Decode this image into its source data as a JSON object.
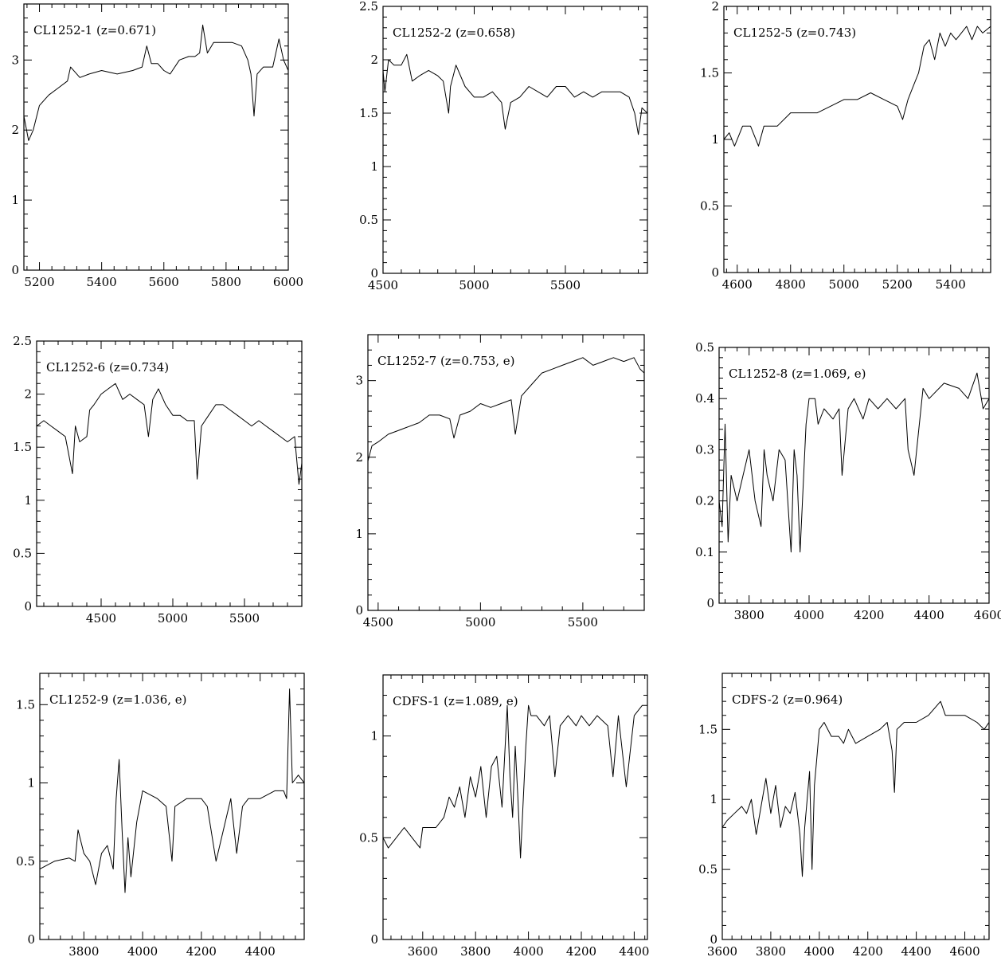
{
  "chart_data": [
    {
      "type": "line",
      "title": "CL1252-1  (z=0.671)",
      "xlim": [
        5150,
        6000
      ],
      "ylim": [
        0,
        3.8
      ],
      "xticks": [
        5200,
        5400,
        5600,
        5800,
        6000
      ],
      "yticks": [
        0,
        1,
        2,
        3
      ],
      "series": [
        {
          "x": [
            5150,
            5165,
            5180,
            5200,
            5230,
            5260,
            5290,
            5300,
            5330,
            5360,
            5400,
            5450,
            5500,
            5530,
            5545,
            5560,
            5580,
            5600,
            5620,
            5650,
            5680,
            5700,
            5715,
            5725,
            5740,
            5760,
            5790,
            5820,
            5850,
            5870,
            5880,
            5890,
            5900,
            5920,
            5950,
            5970,
            5985,
            6000
          ],
          "y": [
            2.2,
            1.85,
            2.0,
            2.35,
            2.5,
            2.6,
            2.7,
            2.9,
            2.75,
            2.8,
            2.85,
            2.8,
            2.85,
            2.9,
            3.2,
            2.95,
            2.95,
            2.85,
            2.8,
            3.0,
            3.05,
            3.05,
            3.1,
            3.5,
            3.1,
            3.25,
            3.25,
            3.25,
            3.2,
            3.0,
            2.8,
            2.2,
            2.8,
            2.9,
            2.9,
            3.3,
            3.0,
            2.85
          ]
        }
      ]
    },
    {
      "type": "line",
      "title": "CL1252-2  (z=0.658)",
      "xlim": [
        4500,
        5950
      ],
      "ylim": [
        0,
        2.5
      ],
      "xticks": [
        4500,
        5000,
        5500
      ],
      "yticks": [
        0,
        0.5,
        1,
        1.5,
        2,
        2.5
      ],
      "series": [
        {
          "x": [
            4500,
            4510,
            4530,
            4560,
            4600,
            4630,
            4660,
            4700,
            4750,
            4800,
            4830,
            4860,
            4870,
            4900,
            4950,
            5000,
            5050,
            5100,
            5150,
            5170,
            5200,
            5250,
            5300,
            5350,
            5400,
            5450,
            5500,
            5550,
            5600,
            5650,
            5700,
            5750,
            5800,
            5850,
            5880,
            5900,
            5920,
            5950
          ],
          "y": [
            1.9,
            1.7,
            2.0,
            1.95,
            1.95,
            2.05,
            1.8,
            1.85,
            1.9,
            1.85,
            1.8,
            1.5,
            1.75,
            1.95,
            1.75,
            1.65,
            1.65,
            1.7,
            1.6,
            1.35,
            1.6,
            1.65,
            1.75,
            1.7,
            1.65,
            1.75,
            1.75,
            1.65,
            1.7,
            1.65,
            1.7,
            1.7,
            1.7,
            1.65,
            1.5,
            1.3,
            1.55,
            1.5
          ]
        }
      ]
    },
    {
      "type": "line",
      "title": "CL1252-5  (z=0.743)",
      "xlim": [
        4550,
        5550
      ],
      "ylim": [
        0,
        2
      ],
      "xticks": [
        4600,
        4800,
        5000,
        5200,
        5400
      ],
      "yticks": [
        0,
        0.5,
        1,
        1.5,
        2
      ],
      "series": [
        {
          "x": [
            4550,
            4570,
            4590,
            4620,
            4650,
            4680,
            4700,
            4750,
            4800,
            4850,
            4900,
            4950,
            5000,
            5050,
            5100,
            5150,
            5200,
            5220,
            5240,
            5260,
            5280,
            5300,
            5320,
            5340,
            5360,
            5380,
            5400,
            5420,
            5440,
            5460,
            5480,
            5500,
            5520,
            5550
          ],
          "y": [
            1.0,
            1.05,
            0.95,
            1.1,
            1.1,
            0.95,
            1.1,
            1.1,
            1.2,
            1.2,
            1.2,
            1.25,
            1.3,
            1.3,
            1.35,
            1.3,
            1.25,
            1.15,
            1.3,
            1.4,
            1.5,
            1.7,
            1.75,
            1.6,
            1.8,
            1.7,
            1.8,
            1.75,
            1.8,
            1.85,
            1.75,
            1.85,
            1.8,
            1.85
          ]
        }
      ]
    },
    {
      "type": "line",
      "title": "CL1252-6  (z=0.734)",
      "xlim": [
        4050,
        5900
      ],
      "ylim": [
        0,
        2.5
      ],
      "xticks": [
        4500,
        5000,
        5500
      ],
      "yticks": [
        0,
        0.5,
        1,
        1.5,
        2,
        2.5
      ],
      "series": [
        {
          "x": [
            4050,
            4100,
            4150,
            4200,
            4250,
            4300,
            4320,
            4350,
            4400,
            4420,
            4450,
            4500,
            4550,
            4600,
            4650,
            4700,
            4750,
            4800,
            4830,
            4860,
            4900,
            4950,
            5000,
            5050,
            5100,
            5150,
            5170,
            5200,
            5250,
            5300,
            5350,
            5400,
            5450,
            5500,
            5550,
            5600,
            5650,
            5700,
            5750,
            5800,
            5850,
            5880,
            5900
          ],
          "y": [
            1.7,
            1.75,
            1.7,
            1.65,
            1.6,
            1.25,
            1.7,
            1.55,
            1.6,
            1.85,
            1.9,
            2.0,
            2.05,
            2.1,
            1.95,
            2.0,
            1.95,
            1.9,
            1.6,
            1.95,
            2.05,
            1.9,
            1.8,
            1.8,
            1.75,
            1.75,
            1.2,
            1.7,
            1.8,
            1.9,
            1.9,
            1.85,
            1.8,
            1.75,
            1.7,
            1.75,
            1.7,
            1.65,
            1.6,
            1.55,
            1.6,
            1.15,
            1.35
          ]
        }
      ]
    },
    {
      "type": "line",
      "title": "CL1252-7  (z=0.753,  e)",
      "xlim": [
        4450,
        5800
      ],
      "ylim": [
        0,
        3.6
      ],
      "xticks": [
        4500,
        5000,
        5500
      ],
      "yticks": [
        0,
        1,
        2,
        3
      ],
      "series": [
        {
          "x": [
            4450,
            4470,
            4500,
            4550,
            4600,
            4650,
            4700,
            4750,
            4800,
            4850,
            4870,
            4900,
            4950,
            5000,
            5050,
            5100,
            5150,
            5170,
            5200,
            5250,
            5300,
            5350,
            5400,
            5450,
            5500,
            5550,
            5600,
            5650,
            5700,
            5750,
            5780,
            5800
          ],
          "y": [
            1.95,
            2.15,
            2.2,
            2.3,
            2.35,
            2.4,
            2.45,
            2.55,
            2.55,
            2.5,
            2.25,
            2.55,
            2.6,
            2.7,
            2.65,
            2.7,
            2.75,
            2.3,
            2.8,
            2.95,
            3.1,
            3.15,
            3.2,
            3.25,
            3.3,
            3.2,
            3.25,
            3.3,
            3.25,
            3.3,
            3.15,
            3.1
          ]
        }
      ]
    },
    {
      "type": "line",
      "title": "CL1252-8  (z=1.069,  e)",
      "xlim": [
        3700,
        4600
      ],
      "ylim": [
        0,
        0.5
      ],
      "xticks": [
        3800,
        4000,
        4200,
        4400,
        4600
      ],
      "yticks": [
        0,
        0.1,
        0.2,
        0.3,
        0.4,
        0.5
      ],
      "series": [
        {
          "x": [
            3700,
            3710,
            3720,
            3730,
            3740,
            3760,
            3780,
            3800,
            3820,
            3840,
            3850,
            3860,
            3880,
            3900,
            3920,
            3940,
            3950,
            3960,
            3970,
            3990,
            4000,
            4020,
            4030,
            4050,
            4080,
            4100,
            4110,
            4130,
            4150,
            4180,
            4200,
            4230,
            4260,
            4290,
            4320,
            4330,
            4350,
            4380,
            4400,
            4450,
            4500,
            4530,
            4560,
            4580,
            4600
          ],
          "y": [
            0.2,
            0.15,
            0.35,
            0.12,
            0.25,
            0.2,
            0.25,
            0.3,
            0.2,
            0.15,
            0.3,
            0.25,
            0.2,
            0.3,
            0.28,
            0.1,
            0.3,
            0.25,
            0.1,
            0.35,
            0.4,
            0.4,
            0.35,
            0.38,
            0.36,
            0.38,
            0.25,
            0.38,
            0.4,
            0.36,
            0.4,
            0.38,
            0.4,
            0.38,
            0.4,
            0.3,
            0.25,
            0.42,
            0.4,
            0.43,
            0.42,
            0.4,
            0.45,
            0.38,
            0.4
          ]
        }
      ]
    },
    {
      "type": "line",
      "title": "CL1252-9  (z=1.036,  e)",
      "xlim": [
        3650,
        4550
      ],
      "ylim": [
        0,
        1.7
      ],
      "xticks": [
        3800,
        4000,
        4200,
        4400
      ],
      "yticks": [
        0,
        0.5,
        1,
        1.5
      ],
      "series": [
        {
          "x": [
            3650,
            3700,
            3750,
            3770,
            3780,
            3800,
            3820,
            3840,
            3860,
            3880,
            3900,
            3910,
            3920,
            3930,
            3940,
            3950,
            3960,
            3980,
            4000,
            4050,
            4080,
            4100,
            4110,
            4150,
            4200,
            4220,
            4250,
            4300,
            4320,
            4340,
            4360,
            4400,
            4450,
            4480,
            4490,
            4500,
            4510,
            4530,
            4550
          ],
          "y": [
            0.45,
            0.5,
            0.52,
            0.5,
            0.7,
            0.55,
            0.5,
            0.35,
            0.55,
            0.6,
            0.45,
            0.9,
            1.15,
            0.7,
            0.3,
            0.65,
            0.4,
            0.75,
            0.95,
            0.9,
            0.85,
            0.5,
            0.85,
            0.9,
            0.9,
            0.85,
            0.5,
            0.9,
            0.55,
            0.85,
            0.9,
            0.9,
            0.95,
            0.95,
            0.9,
            1.6,
            1.0,
            1.05,
            1.0
          ]
        }
      ]
    },
    {
      "type": "line",
      "title": "CDFS-1  (z=1.089,  e)",
      "xlim": [
        3450,
        4450
      ],
      "ylim": [
        0,
        1.3
      ],
      "xticks": [
        3600,
        3800,
        4000,
        4200,
        4400
      ],
      "yticks": [
        0,
        0.5,
        1
      ],
      "series": [
        {
          "x": [
            3450,
            3470,
            3500,
            3530,
            3560,
            3590,
            3600,
            3650,
            3680,
            3700,
            3720,
            3740,
            3760,
            3780,
            3800,
            3820,
            3840,
            3860,
            3880,
            3900,
            3910,
            3920,
            3930,
            3940,
            3950,
            3960,
            3970,
            3990,
            4000,
            4010,
            4030,
            4060,
            4080,
            4100,
            4120,
            4150,
            4180,
            4200,
            4230,
            4260,
            4300,
            4320,
            4340,
            4370,
            4400,
            4430,
            4450
          ],
          "y": [
            0.5,
            0.45,
            0.5,
            0.55,
            0.5,
            0.45,
            0.55,
            0.55,
            0.6,
            0.7,
            0.65,
            0.75,
            0.6,
            0.8,
            0.7,
            0.85,
            0.6,
            0.85,
            0.9,
            0.65,
            0.9,
            1.15,
            0.8,
            0.6,
            0.95,
            0.7,
            0.4,
            0.95,
            1.15,
            1.1,
            1.1,
            1.05,
            1.1,
            0.8,
            1.05,
            1.1,
            1.05,
            1.1,
            1.05,
            1.1,
            1.05,
            0.8,
            1.1,
            0.75,
            1.1,
            1.15,
            1.15
          ]
        }
      ]
    },
    {
      "type": "line",
      "title": "CDFS-2  (z=0.964)",
      "xlim": [
        3600,
        4700
      ],
      "ylim": [
        0,
        1.9
      ],
      "xticks": [
        3600,
        3800,
        4000,
        4200,
        4400,
        4600
      ],
      "yticks": [
        0,
        0.5,
        1,
        1.5
      ],
      "series": [
        {
          "x": [
            3600,
            3620,
            3650,
            3680,
            3700,
            3720,
            3740,
            3760,
            3780,
            3800,
            3820,
            3840,
            3860,
            3880,
            3900,
            3920,
            3930,
            3940,
            3950,
            3960,
            3970,
            3980,
            3990,
            4000,
            4020,
            4050,
            4080,
            4100,
            4120,
            4150,
            4200,
            4250,
            4280,
            4300,
            4310,
            4320,
            4350,
            4400,
            4450,
            4500,
            4520,
            4550,
            4600,
            4650,
            4680,
            4700
          ],
          "y": [
            0.8,
            0.85,
            0.9,
            0.95,
            0.9,
            1.0,
            0.75,
            0.95,
            1.15,
            0.9,
            1.1,
            0.8,
            0.95,
            0.9,
            1.05,
            0.75,
            0.45,
            0.8,
            1.0,
            1.2,
            0.5,
            1.1,
            1.3,
            1.5,
            1.55,
            1.45,
            1.45,
            1.4,
            1.5,
            1.4,
            1.45,
            1.5,
            1.55,
            1.35,
            1.05,
            1.5,
            1.55,
            1.55,
            1.6,
            1.7,
            1.6,
            1.6,
            1.6,
            1.55,
            1.5,
            1.55
          ]
        }
      ]
    }
  ]
}
